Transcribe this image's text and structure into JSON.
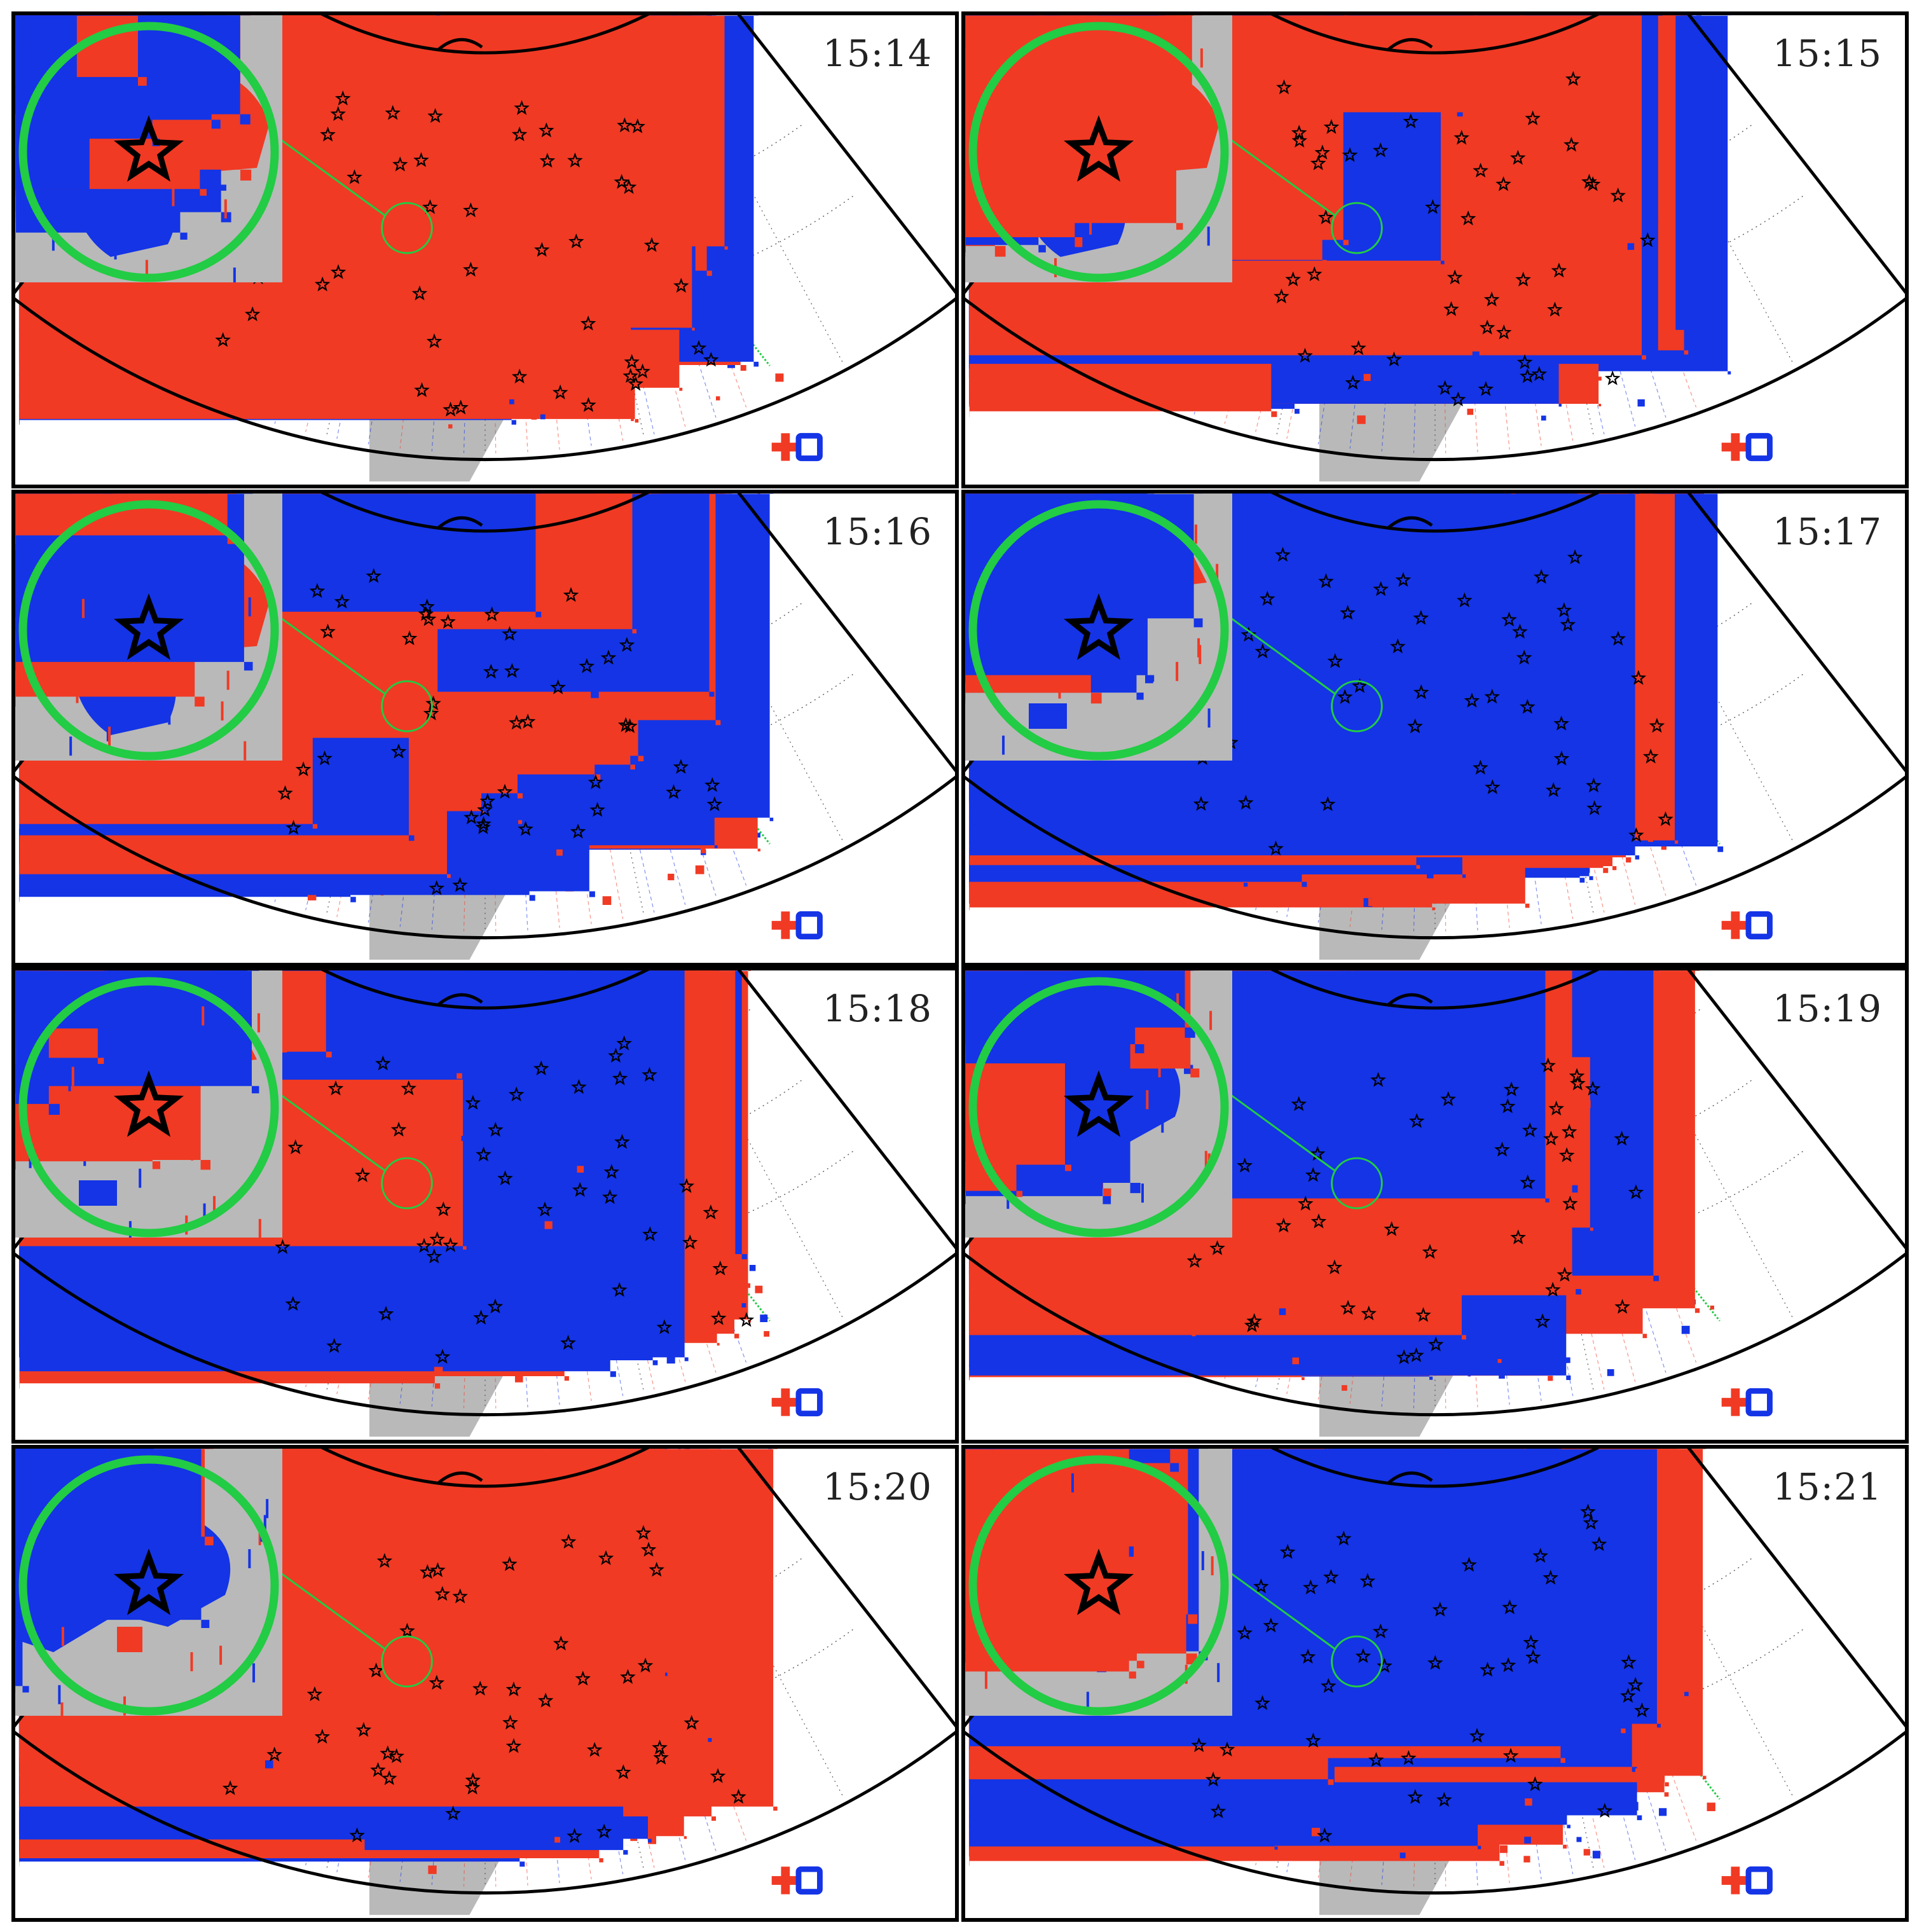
{
  "panels": [
    {
      "time": "15:14",
      "scene": 0
    },
    {
      "time": "15:15",
      "scene": 1
    },
    {
      "time": "15:16",
      "scene": 2
    },
    {
      "time": "15:17",
      "scene": 3
    },
    {
      "time": "15:18",
      "scene": 4
    },
    {
      "time": "15:19",
      "scene": 5
    },
    {
      "time": "15:20",
      "scene": 6
    },
    {
      "time": "15:21",
      "scene": 7
    }
  ],
  "colors": {
    "positive": "#f03a24",
    "negative": "#1434e6",
    "land": "#b9b9b9",
    "highlight": "#22cc44",
    "frame": "#000000",
    "station": "#000000"
  },
  "icons": [
    "star-icon",
    "plus-icon",
    "square-icon"
  ]
}
